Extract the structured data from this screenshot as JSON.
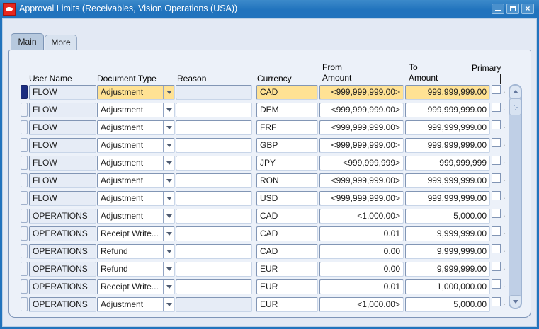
{
  "window": {
    "title": "Approval Limits (Receivables, Vision Operations (USA))",
    "controls": {
      "minimize": "minimize",
      "restore": "restore",
      "close": "close"
    }
  },
  "tabs": [
    {
      "label": "Main",
      "active": true
    },
    {
      "label": "More",
      "active": false
    }
  ],
  "columns": {
    "user_name": "User Name",
    "document_type": "Document Type",
    "reason": "Reason",
    "currency": "Currency",
    "from_amount_line1": "From",
    "from_amount_line2": "Amount",
    "to_amount_line1": "To",
    "to_amount_line2": "Amount",
    "primary": "Primary"
  },
  "misc": {
    "checkbox_suffix": "."
  },
  "icons": [
    "oracle-logo",
    "minimize",
    "restore",
    "close",
    "dropdown-arrow",
    "scroll-up-arrow",
    "scroll-down-arrow"
  ],
  "colors": {
    "titlebar_blue": "#2173bd",
    "oracle_red": "#e8261d",
    "highlight_yellow": "#ffe294",
    "current_record_indicator": "#1b2d80",
    "canvas": "#ecf1f9",
    "readonly_field": "#e6ecf6",
    "field_border": "#93a5c4",
    "active_tab": "#b7c9de",
    "inactive_tab": "#d8e2ef"
  },
  "rows": [
    {
      "user": "FLOW",
      "document_type": "Adjustment",
      "reason": "",
      "currency": "CAD",
      "from_amount": "<999,999,999.00>",
      "to_amount": "999,999,999.00",
      "primary": false,
      "current": true,
      "reason_readonly": true
    },
    {
      "user": "FLOW",
      "document_type": "Adjustment",
      "reason": "",
      "currency": "DEM",
      "from_amount": "<999,999,999.00>",
      "to_amount": "999,999,999.00",
      "primary": false,
      "current": false,
      "reason_readonly": false
    },
    {
      "user": "FLOW",
      "document_type": "Adjustment",
      "reason": "",
      "currency": "FRF",
      "from_amount": "<999,999,999.00>",
      "to_amount": "999,999,999.00",
      "primary": false,
      "current": false,
      "reason_readonly": false
    },
    {
      "user": "FLOW",
      "document_type": "Adjustment",
      "reason": "",
      "currency": "GBP",
      "from_amount": "<999,999,999.00>",
      "to_amount": "999,999,999.00",
      "primary": false,
      "current": false,
      "reason_readonly": false
    },
    {
      "user": "FLOW",
      "document_type": "Adjustment",
      "reason": "",
      "currency": "JPY",
      "from_amount": "<999,999,999>",
      "to_amount": "999,999,999",
      "primary": false,
      "current": false,
      "reason_readonly": false
    },
    {
      "user": "FLOW",
      "document_type": "Adjustment",
      "reason": "",
      "currency": "RON",
      "from_amount": "<999,999,999.00>",
      "to_amount": "999,999,999.00",
      "primary": false,
      "current": false,
      "reason_readonly": false
    },
    {
      "user": "FLOW",
      "document_type": "Adjustment",
      "reason": "",
      "currency": "USD",
      "from_amount": "<999,999,999.00>",
      "to_amount": "999,999,999.00",
      "primary": false,
      "current": false,
      "reason_readonly": false
    },
    {
      "user": "OPERATIONS",
      "document_type": "Adjustment",
      "reason": "",
      "currency": "CAD",
      "from_amount": "<1,000.00>",
      "to_amount": "5,000.00",
      "primary": false,
      "current": false,
      "reason_readonly": false
    },
    {
      "user": "OPERATIONS",
      "document_type": "Receipt Write...",
      "reason": "",
      "currency": "CAD",
      "from_amount": "0.01",
      "to_amount": "9,999,999.00",
      "primary": false,
      "current": false,
      "reason_readonly": false
    },
    {
      "user": "OPERATIONS",
      "document_type": "Refund",
      "reason": "",
      "currency": "CAD",
      "from_amount": "0.00",
      "to_amount": "9,999,999.00",
      "primary": false,
      "current": false,
      "reason_readonly": false
    },
    {
      "user": "OPERATIONS",
      "document_type": "Refund",
      "reason": "",
      "currency": "EUR",
      "from_amount": "0.00",
      "to_amount": "9,999,999.00",
      "primary": false,
      "current": false,
      "reason_readonly": false
    },
    {
      "user": "OPERATIONS",
      "document_type": "Receipt Write...",
      "reason": "",
      "currency": "EUR",
      "from_amount": "0.01",
      "to_amount": "1,000,000.00",
      "primary": false,
      "current": false,
      "reason_readonly": false
    },
    {
      "user": "OPERATIONS",
      "document_type": "Adjustment",
      "reason": "",
      "currency": "EUR",
      "from_amount": "<1,000.00>",
      "to_amount": "5,000.00",
      "primary": false,
      "current": false,
      "reason_readonly": true
    }
  ]
}
